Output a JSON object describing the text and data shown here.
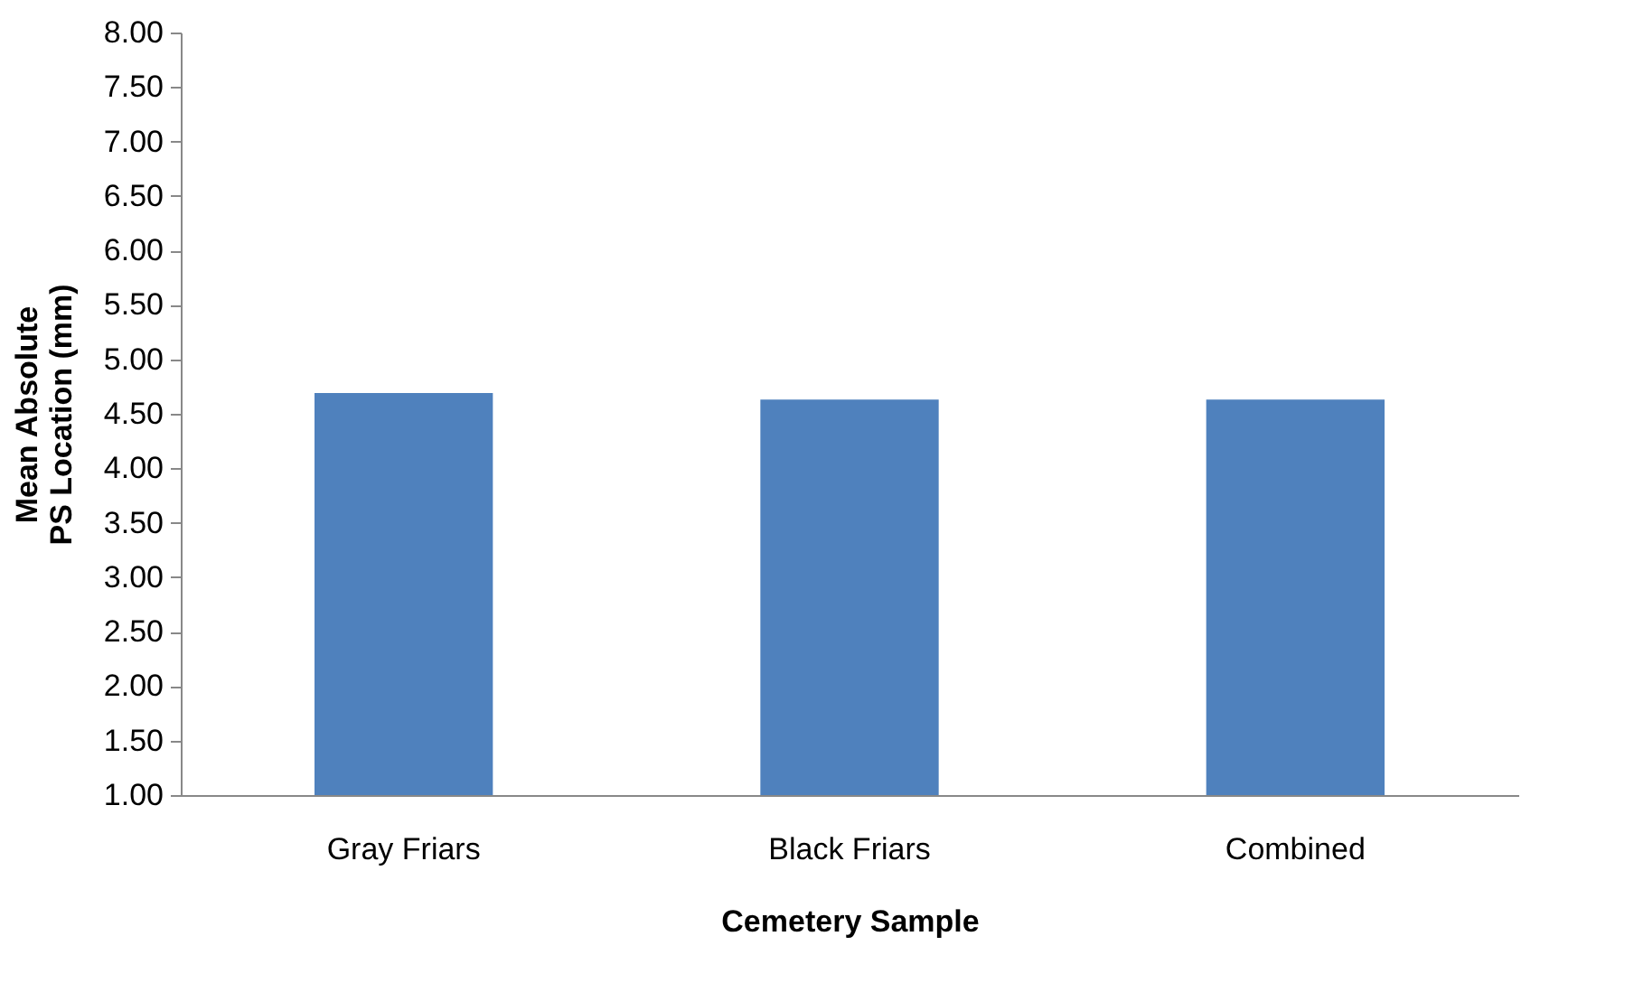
{
  "chart_data": {
    "type": "bar",
    "xlabel": "Cemetery Sample",
    "ylabel": "Mean Absolute PS Location (mm)",
    "categories": [
      "Gray Friars",
      "Black Friars",
      "Combined"
    ],
    "values": [
      4.69,
      4.63,
      4.63
    ],
    "color": "#4f81bd",
    "ylim": [
      1,
      8
    ],
    "yticks": [
      {
        "value": 1,
        "label": "1.00"
      },
      {
        "value": 1.5,
        "label": "1.50"
      },
      {
        "value": 2,
        "label": "2.00"
      },
      {
        "value": 2.5,
        "label": "2.50"
      },
      {
        "value": 3,
        "label": "3.00"
      },
      {
        "value": 3.5,
        "label": "3.50"
      },
      {
        "value": 4,
        "label": "4.00"
      },
      {
        "value": 4.5,
        "label": "4.50"
      },
      {
        "value": 5,
        "label": "5.00"
      },
      {
        "value": 5.5,
        "label": "5.50"
      },
      {
        "value": 6,
        "label": "6.00"
      },
      {
        "value": 6.5,
        "label": "6.50"
      },
      {
        "value": 7,
        "label": "7.00"
      },
      {
        "value": 7.5,
        "label": "7.50"
      },
      {
        "value": 8,
        "label": "8.00"
      }
    ],
    "grid": false
  }
}
